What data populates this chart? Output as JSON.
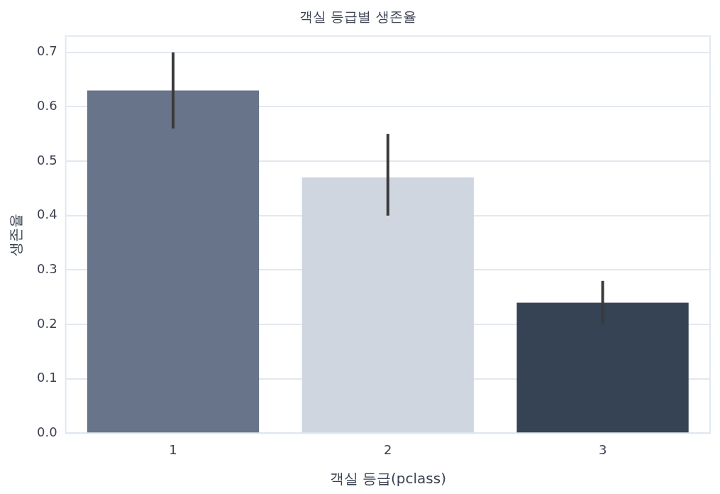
{
  "chart_data": {
    "type": "bar",
    "title": "객실 등급별 생존율",
    "xlabel": "객실 등급(pclass)",
    "ylabel": "생존율",
    "categories": [
      "1",
      "2",
      "3"
    ],
    "values": [
      0.63,
      0.47,
      0.24
    ],
    "colors": [
      "#677489",
      "#cfd6e0",
      "#364354"
    ],
    "errors": [
      [
        0.56,
        0.7
      ],
      [
        0.4,
        0.55
      ],
      [
        0.2,
        0.28
      ]
    ],
    "ylim": [
      0,
      0.73
    ],
    "yticks": [
      {
        "value": 0,
        "label": "0.0"
      },
      0.1,
      0.2,
      0.3,
      0.4,
      0.5,
      0.6,
      0.7
    ],
    "grid": "y",
    "legend": false
  }
}
